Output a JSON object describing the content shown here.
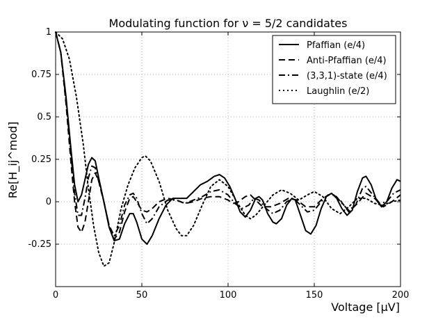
{
  "chart_data": {
    "type": "line",
    "title": "Modulating function for ν = 5/2 candidates",
    "xlabel": "Voltage [μV]",
    "ylabel": "Re[H_ij^mod]",
    "xlim": [
      0,
      200
    ],
    "ylim": [
      -0.5,
      1.0
    ],
    "x_ticks": [
      0,
      50,
      100,
      150,
      200
    ],
    "x_tick_labels": [
      "0",
      "50",
      "100",
      "150",
      "200"
    ],
    "y_ticks": [
      1.0,
      0.75,
      0.5,
      0.25,
      0,
      -0.25
    ],
    "y_tick_labels": [
      "1",
      "0.75",
      "0.5",
      "0.25",
      "0",
      "-0.25"
    ],
    "grid": true,
    "legend_position": "top-right",
    "colors": {
      "lines": "#000000",
      "background": "#ffffff",
      "grid": "#9a9a9a"
    },
    "series": [
      {
        "name": "Pfaffian (e/4)",
        "style": "solid",
        "points": [
          [
            0,
            1.0
          ],
          [
            3,
            0.88
          ],
          [
            6,
            0.62
          ],
          [
            9,
            0.3
          ],
          [
            11,
            0.1
          ],
          [
            13,
            0.0
          ],
          [
            15,
            0.04
          ],
          [
            17,
            0.13
          ],
          [
            19,
            0.22
          ],
          [
            21,
            0.26
          ],
          [
            23,
            0.24
          ],
          [
            25,
            0.14
          ],
          [
            28,
            0.0
          ],
          [
            31,
            -0.15
          ],
          [
            34,
            -0.23
          ],
          [
            37,
            -0.22
          ],
          [
            40,
            -0.13
          ],
          [
            43,
            -0.07
          ],
          [
            45,
            -0.07
          ],
          [
            47,
            -0.12
          ],
          [
            50,
            -0.22
          ],
          [
            53,
            -0.25
          ],
          [
            56,
            -0.2
          ],
          [
            60,
            -0.1
          ],
          [
            64,
            -0.02
          ],
          [
            68,
            0.02
          ],
          [
            72,
            0.02
          ],
          [
            76,
            0.02
          ],
          [
            80,
            0.06
          ],
          [
            84,
            0.1
          ],
          [
            88,
            0.12
          ],
          [
            92,
            0.15
          ],
          [
            95,
            0.16
          ],
          [
            98,
            0.14
          ],
          [
            101,
            0.09
          ],
          [
            104,
            0.02
          ],
          [
            107,
            -0.06
          ],
          [
            110,
            -0.09
          ],
          [
            113,
            -0.05
          ],
          [
            116,
            0.02
          ],
          [
            118,
            0.03
          ],
          [
            120,
            0.01
          ],
          [
            123,
            -0.07
          ],
          [
            126,
            -0.12
          ],
          [
            128,
            -0.13
          ],
          [
            131,
            -0.1
          ],
          [
            134,
            -0.02
          ],
          [
            137,
            0.02
          ],
          [
            139,
            0.01
          ],
          [
            142,
            -0.08
          ],
          [
            145,
            -0.17
          ],
          [
            148,
            -0.19
          ],
          [
            151,
            -0.14
          ],
          [
            154,
            -0.04
          ],
          [
            157,
            0.03
          ],
          [
            160,
            0.05
          ],
          [
            163,
            0.02
          ],
          [
            166,
            -0.04
          ],
          [
            169,
            -0.08
          ],
          [
            172,
            -0.05
          ],
          [
            175,
            0.06
          ],
          [
            178,
            0.14
          ],
          [
            180,
            0.15
          ],
          [
            183,
            0.1
          ],
          [
            186,
            0.01
          ],
          [
            189,
            -0.03
          ],
          [
            192,
            0.0
          ],
          [
            195,
            0.08
          ],
          [
            198,
            0.13
          ],
          [
            200,
            0.12
          ]
        ]
      },
      {
        "name": "Anti-Pfaffian (e/4)",
        "style": "dashed",
        "points": [
          [
            0,
            1.0
          ],
          [
            3,
            0.88
          ],
          [
            6,
            0.58
          ],
          [
            9,
            0.22
          ],
          [
            11,
            0.0
          ],
          [
            13,
            -0.15
          ],
          [
            15,
            -0.18
          ],
          [
            17,
            -0.12
          ],
          [
            19,
            0.0
          ],
          [
            21,
            0.13
          ],
          [
            23,
            0.17
          ],
          [
            25,
            0.12
          ],
          [
            28,
            0.0
          ],
          [
            31,
            -0.14
          ],
          [
            34,
            -0.22
          ],
          [
            37,
            -0.18
          ],
          [
            40,
            -0.06
          ],
          [
            43,
            0.02
          ],
          [
            45,
            0.03
          ],
          [
            47,
            0.0
          ],
          [
            50,
            -0.05
          ],
          [
            53,
            -0.06
          ],
          [
            56,
            -0.04
          ],
          [
            60,
            0.0
          ],
          [
            65,
            0.02
          ],
          [
            70,
            0.01
          ],
          [
            75,
            -0.01
          ],
          [
            80,
            0.0
          ],
          [
            85,
            0.02
          ],
          [
            90,
            0.03
          ],
          [
            95,
            0.03
          ],
          [
            100,
            0.01
          ],
          [
            103,
            -0.01
          ],
          [
            106,
            0.0
          ],
          [
            110,
            0.03
          ],
          [
            113,
            0.04
          ],
          [
            116,
            0.01
          ],
          [
            120,
            -0.03
          ],
          [
            125,
            -0.03
          ],
          [
            130,
            -0.01
          ],
          [
            135,
            0.02
          ],
          [
            140,
            0.01
          ],
          [
            145,
            -0.03
          ],
          [
            150,
            -0.03
          ],
          [
            155,
            0.02
          ],
          [
            160,
            0.05
          ],
          [
            165,
            0.01
          ],
          [
            170,
            -0.06
          ],
          [
            175,
            -0.01
          ],
          [
            180,
            0.05
          ],
          [
            185,
            0.02
          ],
          [
            190,
            -0.03
          ],
          [
            195,
            0.0
          ],
          [
            200,
            0.04
          ]
        ]
      },
      {
        "name": "(3,3,1)-state (e/4)",
        "style": "dashdot",
        "points": [
          [
            0,
            1.0
          ],
          [
            3,
            0.88
          ],
          [
            6,
            0.6
          ],
          [
            9,
            0.27
          ],
          [
            11,
            0.05
          ],
          [
            13,
            -0.08
          ],
          [
            15,
            -0.08
          ],
          [
            17,
            0.02
          ],
          [
            19,
            0.14
          ],
          [
            21,
            0.21
          ],
          [
            23,
            0.2
          ],
          [
            25,
            0.12
          ],
          [
            28,
            0.0
          ],
          [
            31,
            -0.14
          ],
          [
            34,
            -0.2
          ],
          [
            37,
            -0.14
          ],
          [
            40,
            -0.02
          ],
          [
            43,
            0.04
          ],
          [
            45,
            0.05
          ],
          [
            47,
            0.02
          ],
          [
            50,
            -0.07
          ],
          [
            53,
            -0.13
          ],
          [
            56,
            -0.1
          ],
          [
            60,
            -0.03
          ],
          [
            65,
            0.01
          ],
          [
            70,
            0.01
          ],
          [
            75,
            -0.01
          ],
          [
            80,
            0.01
          ],
          [
            85,
            0.03
          ],
          [
            90,
            0.06
          ],
          [
            95,
            0.07
          ],
          [
            100,
            0.04
          ],
          [
            104,
            -0.01
          ],
          [
            108,
            -0.04
          ],
          [
            112,
            -0.02
          ],
          [
            115,
            0.02
          ],
          [
            118,
            0.01
          ],
          [
            122,
            -0.04
          ],
          [
            126,
            -0.07
          ],
          [
            130,
            -0.05
          ],
          [
            134,
            0.0
          ],
          [
            138,
            0.02
          ],
          [
            142,
            -0.02
          ],
          [
            146,
            -0.06
          ],
          [
            150,
            -0.05
          ],
          [
            154,
            0.0
          ],
          [
            158,
            0.04
          ],
          [
            162,
            0.04
          ],
          [
            166,
            -0.01
          ],
          [
            170,
            -0.05
          ],
          [
            174,
            -0.02
          ],
          [
            178,
            0.08
          ],
          [
            180,
            0.09
          ],
          [
            184,
            0.04
          ],
          [
            188,
            -0.01
          ],
          [
            192,
            0.0
          ],
          [
            196,
            0.05
          ],
          [
            200,
            0.07
          ]
        ]
      },
      {
        "name": "Laughlin (e/2)",
        "style": "dotted",
        "points": [
          [
            0,
            1.0
          ],
          [
            4,
            0.96
          ],
          [
            8,
            0.84
          ],
          [
            12,
            0.62
          ],
          [
            16,
            0.34
          ],
          [
            19,
            0.08
          ],
          [
            22,
            -0.14
          ],
          [
            25,
            -0.3
          ],
          [
            28,
            -0.38
          ],
          [
            31,
            -0.36
          ],
          [
            34,
            -0.24
          ],
          [
            38,
            -0.04
          ],
          [
            42,
            0.1
          ],
          [
            46,
            0.2
          ],
          [
            50,
            0.26
          ],
          [
            52,
            0.27
          ],
          [
            55,
            0.24
          ],
          [
            60,
            0.12
          ],
          [
            65,
            -0.05
          ],
          [
            70,
            -0.16
          ],
          [
            73,
            -0.2
          ],
          [
            76,
            -0.2
          ],
          [
            80,
            -0.14
          ],
          [
            85,
            -0.02
          ],
          [
            90,
            0.09
          ],
          [
            95,
            0.13
          ],
          [
            100,
            0.09
          ],
          [
            105,
            0.0
          ],
          [
            110,
            -0.08
          ],
          [
            113,
            -0.1
          ],
          [
            116,
            -0.08
          ],
          [
            121,
            -0.02
          ],
          [
            126,
            0.04
          ],
          [
            131,
            0.07
          ],
          [
            136,
            0.05
          ],
          [
            141,
            0.01
          ],
          [
            146,
            0.04
          ],
          [
            150,
            0.06
          ],
          [
            155,
            0.03
          ],
          [
            160,
            -0.04
          ],
          [
            165,
            -0.07
          ],
          [
            170,
            -0.03
          ],
          [
            175,
            0.02
          ],
          [
            180,
            0.02
          ],
          [
            185,
            -0.01
          ],
          [
            190,
            -0.02
          ],
          [
            195,
            0.0
          ],
          [
            200,
            0.01
          ]
        ]
      }
    ]
  }
}
